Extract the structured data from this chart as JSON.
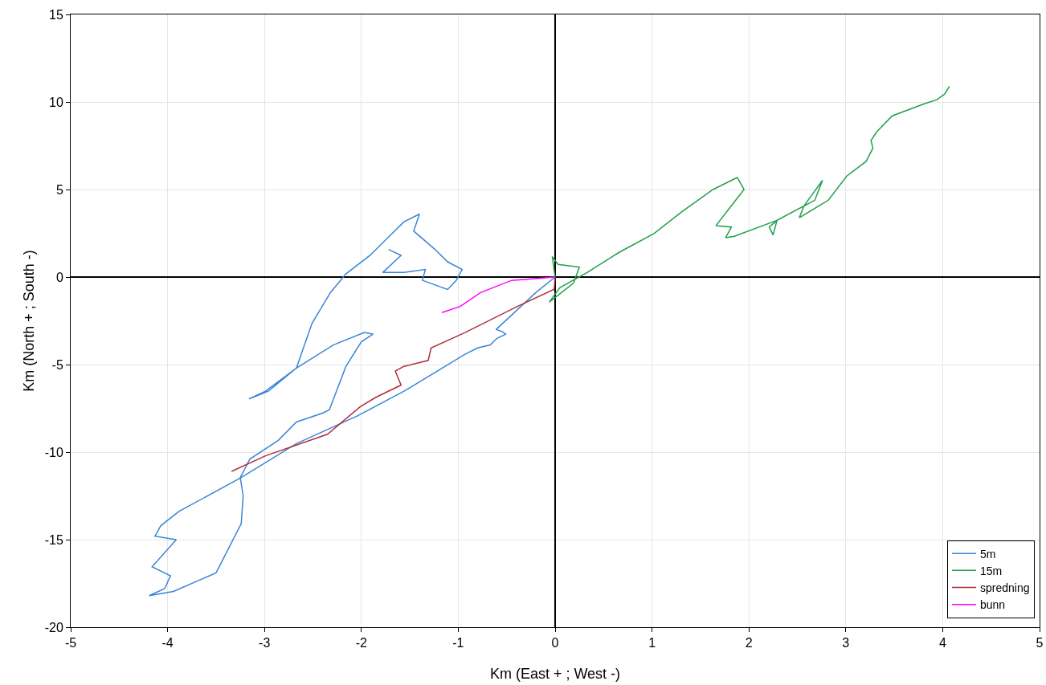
{
  "chart_data": {
    "type": "line",
    "xlabel": "Km (East + ; West -)",
    "ylabel": "Km (North + ; South -)",
    "xlim": [
      -5,
      5
    ],
    "xticks": [
      -5,
      -4,
      -3,
      -2,
      -1,
      0,
      1,
      2,
      3,
      4,
      5
    ],
    "ylim": [
      -20,
      15
    ],
    "yticks": [
      -20,
      -15,
      -10,
      -5,
      0,
      5,
      10,
      15
    ],
    "grid": true,
    "legend": "bottom right",
    "marker": "none",
    "line_style": "solid",
    "series": [
      {
        "name": "5m",
        "color": "#3a85d8",
        "x": [
          0,
          -0.2,
          -0.61,
          -0.55,
          -0.51,
          -0.6,
          -0.67,
          -0.8,
          -0.93,
          -1.56,
          -2.04,
          -2.67,
          -3.24,
          -3.88,
          -4.07,
          -4.13,
          -3.91,
          -4.16,
          -3.97,
          -4.03,
          -4.19,
          -3.94,
          -3.5,
          -3.24,
          -3.22,
          -3.25,
          -3.15,
          -2.86,
          -2.67,
          -2.39,
          -2.33,
          -2.16,
          -2.0,
          -1.88,
          -1.97,
          -2.29,
          -2.67,
          -2.99,
          -3.16,
          -2.96,
          -2.67,
          -2.51,
          -2.32,
          -2.16,
          -1.91,
          -1.75,
          -1.56,
          -1.4,
          -1.46,
          -1.24,
          -1.11,
          -0.96,
          -1.02,
          -1.11,
          -1.37,
          -1.34,
          -1.56,
          -1.78,
          -1.59,
          -1.72
        ],
        "values": [
          0,
          -0.89,
          -3.0,
          -3.1,
          -3.26,
          -3.5,
          -3.88,
          -4.05,
          -4.41,
          -6.52,
          -7.93,
          -9.51,
          -11.45,
          -13.38,
          -14.2,
          -14.8,
          -15.0,
          -16.55,
          -17.07,
          -17.8,
          -18.2,
          -17.96,
          -16.9,
          -14.09,
          -12.5,
          -11.45,
          -10.39,
          -9.34,
          -8.28,
          -7.75,
          -7.58,
          -5.11,
          -3.7,
          -3.26,
          -3.17,
          -3.88,
          -5.2,
          -6.52,
          -6.96,
          -6.52,
          -5.2,
          -2.65,
          -0.89,
          0.18,
          1.24,
          2.12,
          3.16,
          3.6,
          2.63,
          1.58,
          0.87,
          0.43,
          -0.19,
          -0.71,
          -0.19,
          0.43,
          0.26,
          0.26,
          1.24,
          1.58
        ]
      },
      {
        "name": "15m",
        "color": "#1fa04a",
        "x": [
          0,
          -0.03,
          0.03,
          0.25,
          0.19,
          -0.06,
          0.05,
          0.33,
          0.66,
          1.02,
          1.3,
          1.63,
          1.88,
          1.95,
          1.82,
          1.66,
          1.82,
          1.76,
          1.85,
          2.29,
          2.21,
          2.25,
          2.29,
          2.68,
          2.76,
          2.57,
          2.52,
          2.82,
          3.01,
          3.21,
          3.28,
          3.26,
          3.32,
          3.48,
          3.81,
          3.94,
          4.02,
          4.07
        ],
        "values": [
          0,
          1.17,
          0.72,
          0.57,
          -0.35,
          -1.43,
          -0.6,
          0.26,
          1.41,
          2.48,
          3.7,
          5.0,
          5.69,
          5.0,
          4.08,
          2.94,
          2.86,
          2.25,
          2.33,
          3.24,
          2.86,
          2.4,
          3.24,
          4.39,
          5.53,
          4.08,
          3.39,
          4.39,
          5.77,
          6.61,
          7.37,
          7.8,
          8.3,
          9.21,
          9.9,
          10.13,
          10.45,
          10.9
        ]
      },
      {
        "name": "spredning",
        "color": "#b22d3a",
        "x": [
          0,
          -0.01,
          -0.39,
          -0.93,
          -1.28,
          -1.31,
          -1.56,
          -1.65,
          -1.59,
          -1.85,
          -2.01,
          -2.35,
          -2.99,
          -3.34
        ],
        "values": [
          0,
          -0.7,
          -1.68,
          -3.17,
          -4.05,
          -4.76,
          -5.1,
          -5.37,
          -6.17,
          -6.87,
          -7.4,
          -8.98,
          -10.21,
          -11.1
        ]
      },
      {
        "name": "bunn",
        "color": "#ff00ff",
        "x": [
          0,
          -0.45,
          -0.77,
          -0.98,
          -1.17
        ],
        "values": [
          0,
          -0.19,
          -0.89,
          -1.68,
          -2.03
        ]
      }
    ]
  }
}
